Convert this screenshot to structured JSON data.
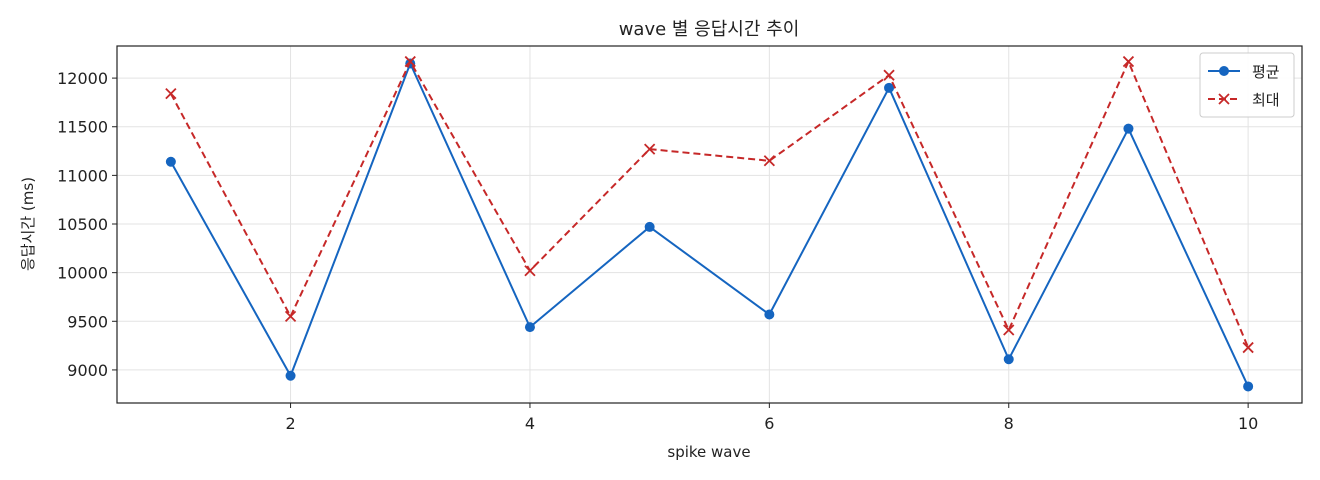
{
  "chart_data": {
    "type": "line",
    "title": "wave 별 응답시간 추이",
    "xlabel": "spike wave",
    "ylabel": "응답시간 (ms)",
    "x": [
      1,
      2,
      3,
      4,
      5,
      6,
      7,
      8,
      9,
      10
    ],
    "xticks": [
      2,
      4,
      6,
      8,
      10
    ],
    "yticks": [
      9000,
      9500,
      10000,
      10500,
      11000,
      11500,
      12000
    ],
    "xlim": [
      0.55,
      10.45
    ],
    "ylim": [
      8660,
      12330
    ],
    "grid": true,
    "legend_position": "top-right",
    "series": [
      {
        "name": "평균",
        "color": "#1565c0",
        "line_style": "solid",
        "marker": "circle",
        "values": [
          11140,
          8940,
          12150,
          9440,
          10470,
          9570,
          11900,
          9110,
          11480,
          8830
        ]
      },
      {
        "name": "최대",
        "color": "#c62828",
        "line_style": "dashed",
        "marker": "x",
        "values": [
          11840,
          9550,
          12170,
          10020,
          11270,
          11150,
          12030,
          9410,
          12170,
          9230
        ]
      }
    ]
  }
}
